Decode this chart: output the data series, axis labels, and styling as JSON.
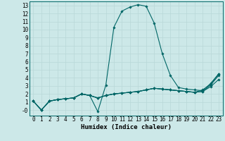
{
  "xlabel": "Humidex (Indice chaleur)",
  "ylabel": "",
  "bg_color": "#cce8e8",
  "grid_color": "#b8d8d8",
  "line_color": "#006666",
  "xlim": [
    -0.5,
    23.5
  ],
  "ylim": [
    -0.7,
    13.5
  ],
  "xticks": [
    0,
    1,
    2,
    3,
    4,
    5,
    6,
    7,
    8,
    9,
    10,
    11,
    12,
    13,
    14,
    15,
    16,
    17,
    18,
    19,
    20,
    21,
    22,
    23
  ],
  "ytick_vals": [
    0,
    1,
    2,
    3,
    4,
    5,
    6,
    7,
    8,
    9,
    10,
    11,
    12,
    13
  ],
  "ytick_labels": [
    "-0",
    "1",
    "2",
    "3",
    "4",
    "5",
    "6",
    "7",
    "8",
    "9",
    "10",
    "11",
    "12",
    "13"
  ],
  "series": [
    [
      1.1,
      0.0,
      1.1,
      1.3,
      1.4,
      1.5,
      2.0,
      1.8,
      -0.2,
      3.1,
      10.3,
      12.3,
      12.8,
      13.1,
      12.9,
      10.8,
      7.0,
      4.3,
      2.8,
      2.6,
      2.5,
      2.4,
      3.3,
      4.5
    ],
    [
      1.1,
      0.0,
      1.1,
      1.3,
      1.4,
      1.5,
      2.0,
      1.8,
      1.5,
      1.8,
      2.0,
      2.1,
      2.2,
      2.3,
      2.5,
      2.7,
      2.6,
      2.5,
      2.4,
      2.3,
      2.2,
      2.3,
      2.9,
      3.8
    ],
    [
      1.1,
      0.0,
      1.1,
      1.3,
      1.4,
      1.5,
      2.0,
      1.8,
      1.5,
      1.8,
      2.0,
      2.1,
      2.2,
      2.3,
      2.5,
      2.7,
      2.6,
      2.5,
      2.4,
      2.3,
      2.2,
      2.3,
      3.1,
      4.3
    ],
    [
      1.1,
      0.0,
      1.1,
      1.3,
      1.4,
      1.5,
      2.0,
      1.8,
      1.5,
      1.8,
      2.0,
      2.1,
      2.2,
      2.3,
      2.5,
      2.7,
      2.6,
      2.5,
      2.4,
      2.3,
      2.2,
      2.5,
      3.2,
      4.5
    ]
  ],
  "marker": "D",
  "markersize": 1.8,
  "linewidth": 0.8,
  "font_family": "monospace",
  "tick_fontsize": 5.5,
  "xlabel_fontsize": 6.5
}
